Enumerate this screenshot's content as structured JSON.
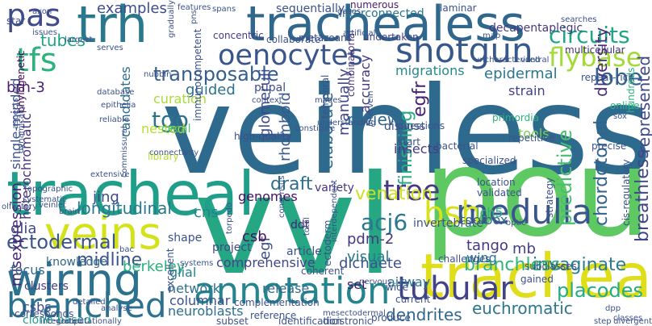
{
  "words": [
    {
      "text": "veinless",
      "color": "#2e6a8e",
      "vertical": false
    },
    {
      "text": "pou",
      "color": "#5ec962",
      "vertical": false
    },
    {
      "text": "vvl",
      "color": "#26a784",
      "vertical": false
    },
    {
      "text": "tracheal",
      "color": "#1f9e89",
      "vertical": false
    },
    {
      "text": "trachealess",
      "color": "#30678d",
      "vertical": false
    },
    {
      "text": "trachea",
      "color": "#e0dd19",
      "vertical": false
    },
    {
      "text": "trh",
      "color": "#2a788e",
      "vertical": false
    },
    {
      "text": "wiring",
      "color": "#2c718e",
      "vertical": false
    },
    {
      "text": "veins",
      "color": "#d3e21b",
      "vertical": false
    },
    {
      "text": "annotation",
      "color": "#25848e",
      "vertical": false
    },
    {
      "text": "branched",
      "color": "#2c728e",
      "vertical": false
    },
    {
      "text": "medulla",
      "color": "#39568c",
      "vertical": false
    },
    {
      "text": "shotgun",
      "color": "#38588c",
      "vertical": false
    },
    {
      "text": "oenocytes",
      "color": "#3a548c",
      "vertical": false
    },
    {
      "text": "tfs",
      "color": "#2db27d",
      "vertical": false
    },
    {
      "text": "pas",
      "color": "#3e4a89",
      "vertical": false
    },
    {
      "text": "flybase",
      "color": "#a2da37",
      "vertical": false
    },
    {
      "text": "bsh",
      "color": "#d8e219",
      "vertical": false
    },
    {
      "text": "tubular",
      "color": "#414287",
      "vertical": false
    },
    {
      "text": "tree",
      "color": "#443a83",
      "vertical": false
    },
    {
      "text": "circuits",
      "color": "#21a685",
      "vertical": false
    },
    {
      "text": "lobe",
      "color": "#33638d",
      "vertical": false
    },
    {
      "text": "transposable",
      "color": "#365d8d",
      "vertical": false
    },
    {
      "text": "tubes",
      "color": "#1fa287",
      "vertical": false
    },
    {
      "text": "examples",
      "color": "#3d4d8a",
      "vertical": false
    },
    {
      "text": "ectodermal",
      "color": "#3a548c",
      "vertical": false
    },
    {
      "text": "breathless",
      "color": "#404588",
      "vertical": true
    },
    {
      "text": "represented",
      "color": "#3f4889",
      "vertical": true
    },
    {
      "text": "chordotonal",
      "color": "#33628d",
      "vertical": true
    },
    {
      "text": "diversity",
      "color": "#472d7b",
      "vertical": true
    },
    {
      "text": "dendrites",
      "color": "#31668e",
      "vertical": false
    },
    {
      "text": "euchromatic",
      "color": "#2b758e",
      "vertical": false
    },
    {
      "text": "placodes",
      "color": "#25ac82",
      "vertical": false
    },
    {
      "text": "invaginate",
      "color": "#287c8e",
      "vertical": false
    },
    {
      "text": "branchless",
      "color": "#2fb47c",
      "vertical": false
    },
    {
      "text": "midline",
      "color": "#39558c",
      "vertical": false
    },
    {
      "text": "venation",
      "color": "#cde11d",
      "vertical": false
    },
    {
      "text": "egfr",
      "color": "#482173",
      "vertical": true
    },
    {
      "text": "finishing",
      "color": "#27ad81",
      "vertical": true
    },
    {
      "text": "acj6",
      "color": "#2a788e",
      "vertical": false
    },
    {
      "text": "egf",
      "color": "#3c4f8a",
      "vertical": true
    },
    {
      "text": "manually",
      "color": "#3f4788",
      "vertical": true
    },
    {
      "text": "accuracy",
      "color": "#453781",
      "vertical": true
    },
    {
      "text": "rhomboid",
      "color": "#38588c",
      "vertical": true
    },
    {
      "text": "elaborate",
      "color": "#306a8e",
      "vertical": true
    },
    {
      "text": "glomeruli",
      "color": "#3e4a89",
      "vertical": true
    },
    {
      "text": "tgo",
      "color": "#2c728e",
      "vertical": false
    },
    {
      "text": "nested",
      "color": "#b8de29",
      "vertical": false
    },
    {
      "text": "jing",
      "color": "#3e4989",
      "vertical": false
    },
    {
      "text": "longitudinal",
      "color": "#297a8e",
      "vertical": false
    },
    {
      "text": "draft",
      "color": "#2e6f8e",
      "vertical": false
    },
    {
      "text": "candidates",
      "color": "#2e6d8e",
      "vertical": true
    },
    {
      "text": "heterochromatic",
      "color": "#46327e",
      "vertical": true
    },
    {
      "text": "single-minded",
      "color": "#3b528b",
      "vertical": true
    },
    {
      "text": "misexpression",
      "color": "#482576",
      "vertical": true
    },
    {
      "text": "berkeley",
      "color": "#2ab07f",
      "vertical": false
    },
    {
      "text": "comprehensive",
      "color": "#404588",
      "vertical": false
    },
    {
      "text": "dichaete",
      "color": "#3b528b",
      "vertical": false
    },
    {
      "text": "tango",
      "color": "#453882",
      "vertical": false
    },
    {
      "text": "wing",
      "color": "#2a788e",
      "vertical": false
    },
    {
      "text": "mb",
      "color": "#424086",
      "vertical": false
    },
    {
      "text": "predictive",
      "color": "#46c06f",
      "vertical": true
    },
    {
      "text": "review",
      "color": "#31688e",
      "vertical": false
    },
    {
      "text": "cns",
      "color": "#26828e",
      "vertical": false
    },
    {
      "text": "csb",
      "color": "#471164",
      "vertical": false
    },
    {
      "text": "pdm-2",
      "color": "#453882",
      "vertical": false
    },
    {
      "text": "glial",
      "color": "#27808e",
      "vertical": false
    },
    {
      "text": "visual",
      "color": "#2a788e",
      "vertical": false
    },
    {
      "text": "network",
      "color": "#2d708e",
      "vertical": false
    },
    {
      "text": "release",
      "color": "#31688e",
      "vertical": false
    },
    {
      "text": "columnar",
      "color": "#3b518b",
      "vertical": false
    },
    {
      "text": "neuroblasts",
      "color": "#2e6e8e",
      "vertical": false
    },
    {
      "text": "set",
      "color": "#481668",
      "vertical": false
    },
    {
      "text": "airway",
      "color": "#2a768e",
      "vertical": false
    },
    {
      "text": "guided",
      "color": "#2d718e",
      "vertical": false
    },
    {
      "text": "pupal",
      "color": "#3d4d8a",
      "vertical": false
    },
    {
      "text": "curation",
      "color": "#a8db34",
      "vertical": false
    },
    {
      "text": "migrations",
      "color": "#23898e",
      "vertical": false
    },
    {
      "text": "epidermal",
      "color": "#2a768e",
      "vertical": false
    },
    {
      "text": "glia",
      "color": "#3f4788",
      "vertical": false
    },
    {
      "text": "brn-3",
      "color": "#482374",
      "vertical": false
    },
    {
      "text": "genomes",
      "color": "#471164",
      "vertical": false
    },
    {
      "text": "variety",
      "color": "#46327e",
      "vertical": false
    },
    {
      "text": "focus",
      "color": "#306a8e",
      "vertical": false
    },
    {
      "text": "csbs",
      "color": "#3e4c8a",
      "vertical": false
    },
    {
      "text": "clone-based",
      "color": "#1fa088",
      "vertical": false
    },
    {
      "text": "clusters",
      "color": "#433e85",
      "vertical": false
    },
    {
      "text": "knowledge",
      "color": "#30678d",
      "vertical": false
    },
    {
      "text": "shape",
      "color": "#3b528b",
      "vertical": false
    },
    {
      "text": "ddt",
      "color": "#482374",
      "vertical": false
    },
    {
      "text": "lch5",
      "color": "#2db27d",
      "vertical": false
    },
    {
      "text": "toolbox",
      "color": "#30678d",
      "vertical": false
    },
    {
      "text": "tools",
      "color": "#7ad151",
      "vertical": false
    },
    {
      "text": "insects",
      "color": "#433d84",
      "vertical": false
    },
    {
      "text": "strain",
      "color": "#414287",
      "vertical": false
    },
    {
      "text": "discuss",
      "color": "#3b528b",
      "vertical": false
    },
    {
      "text": "project",
      "color": "#3f4889",
      "vertical": false
    },
    {
      "text": "article",
      "color": "#3b518b",
      "vertical": false
    },
    {
      "text": "invertebrate",
      "color": "#3a548c",
      "vertical": false
    },
    {
      "text": "high-quality",
      "color": "#3c4f8a",
      "vertical": false
    },
    {
      "text": "library",
      "color": "#b5de2b",
      "vertical": false
    },
    {
      "text": "cecal",
      "color": "#4ac16d",
      "vertical": false
    },
    {
      "text": "collaborate",
      "color": "#3b528b",
      "vertical": false
    },
    {
      "text": "metazoans",
      "color": "#3d4e8a",
      "vertical": false
    },
    {
      "text": "undertaken",
      "color": "#424086",
      "vertical": false
    },
    {
      "text": "multicellular",
      "color": "#472f7d",
      "vertical": false
    },
    {
      "text": "decapentaplegic",
      "color": "#443983",
      "vertical": false
    },
    {
      "text": "interconnected",
      "color": "#2a768e",
      "vertical": false
    },
    {
      "text": "sequentially",
      "color": "#3b528b",
      "vertical": false
    },
    {
      "text": "laminar",
      "color": "#3b528b",
      "vertical": false
    },
    {
      "text": "numerous",
      "color": "#481a6c",
      "vertical": false
    },
    {
      "text": "concentric",
      "color": "#443983",
      "vertical": false
    },
    {
      "text": "phylogenetic",
      "color": "#440154",
      "vertical": true
    },
    {
      "text": "temporal",
      "color": "#3b528b",
      "vertical": true
    },
    {
      "text": "combinatorial",
      "color": "#46337f",
      "vertical": true
    },
    {
      "text": "immunocompetent",
      "color": "#3b528b",
      "vertical": true
    },
    {
      "text": "repeat-rich",
      "color": "#3b528b",
      "vertical": false
    },
    {
      "text": "primordia",
      "color": "#2db27d",
      "vertical": false
    },
    {
      "text": "online",
      "color": "#2db27d",
      "vertical": false
    },
    {
      "text": "hundreds",
      "color": "#2db27d",
      "vertical": true
    },
    {
      "text": "repetitive",
      "color": "#3b528b",
      "vertical": false
    },
    {
      "text": "specialized",
      "color": "#3b528b",
      "vertical": false
    },
    {
      "text": "bacterial",
      "color": "#3b528b",
      "vertical": false
    },
    {
      "text": "questions",
      "color": "#3b528b",
      "vertical": false
    },
    {
      "text": "start",
      "color": "#3b528b",
      "vertical": false
    },
    {
      "text": "precise",
      "color": "#3b528b",
      "vertical": false
    },
    {
      "text": "location",
      "color": "#3b528b",
      "vertical": false
    },
    {
      "text": "validated",
      "color": "#3b528b",
      "vertical": false
    },
    {
      "text": "cis-regulatory",
      "color": "#3b528b",
      "vertical": true
    },
    {
      "text": "strategy",
      "color": "#3b528b",
      "vertical": true
    },
    {
      "text": "challenges",
      "color": "#3b528b",
      "vertical": false
    },
    {
      "text": "subclasses",
      "color": "#3b528b",
      "vertical": false
    },
    {
      "text": "gained",
      "color": "#3b528b",
      "vertical": false
    },
    {
      "text": "coherent",
      "color": "#3b528b",
      "vertical": false
    },
    {
      "text": "wide",
      "color": "#3b528b",
      "vertical": false
    },
    {
      "text": "current",
      "color": "#3b528b",
      "vertical": false
    },
    {
      "text": "complementation",
      "color": "#3b528b",
      "vertical": false
    },
    {
      "text": "reference",
      "color": "#3b528b",
      "vertical": false
    },
    {
      "text": "produce",
      "color": "#3b528b",
      "vertical": false
    },
    {
      "text": "dicistronic",
      "color": "#3b528b",
      "vertical": false
    },
    {
      "text": "identification",
      "color": "#3b528b",
      "vertical": false
    },
    {
      "text": "subset",
      "color": "#3b528b",
      "vertical": false
    },
    {
      "text": "integrated",
      "color": "#3b528b",
      "vertical": false
    },
    {
      "text": "computationally",
      "color": "#3b528b",
      "vertical": false
    },
    {
      "text": "detailed",
      "color": "#3b528b",
      "vertical": false
    },
    {
      "text": "analyse",
      "color": "#3b528b",
      "vertical": false
    },
    {
      "text": "corresponds",
      "color": "#3b528b",
      "vertical": false
    },
    {
      "text": "systems",
      "color": "#3b528b",
      "vertical": false
    },
    {
      "text": "excellent",
      "color": "#3b528b",
      "vertical": true
    },
    {
      "text": "bac",
      "color": "#3b528b",
      "vertical": false
    },
    {
      "text": "topographic",
      "color": "#3b528b",
      "vertical": false
    },
    {
      "text": "systematic",
      "color": "#3b528b",
      "vertical": false
    },
    {
      "text": "olfactory",
      "color": "#3b528b",
      "vertical": false
    },
    {
      "text": "veinlet",
      "color": "#3b528b",
      "vertical": false
    },
    {
      "text": "brain",
      "color": "#3b528b",
      "vertical": false
    },
    {
      "text": "dynamically",
      "color": "#3b528b",
      "vertical": true
    },
    {
      "text": "aspects",
      "color": "#3b528b",
      "vertical": true
    },
    {
      "text": "connectivity",
      "color": "#3b528b",
      "vertical": false
    },
    {
      "text": "commissural",
      "color": "#3b528b",
      "vertical": true
    },
    {
      "text": "extensive",
      "color": "#3b528b",
      "vertical": false
    },
    {
      "text": "epithelia",
      "color": "#3b528b",
      "vertical": false
    },
    {
      "text": "reliable",
      "color": "#3b528b",
      "vertical": false
    },
    {
      "text": "database",
      "color": "#3b528b",
      "vertical": false
    },
    {
      "text": "nubbin",
      "color": "#3b528b",
      "vertical": false
    },
    {
      "text": "serves",
      "color": "#3b528b",
      "vertical": false
    },
    {
      "text": "largest",
      "color": "#3b528b",
      "vertical": false
    },
    {
      "text": "issues",
      "color": "#3b528b",
      "vertical": false
    },
    {
      "text": "features",
      "color": "#3b528b",
      "vertical": false
    },
    {
      "text": "spans",
      "color": "#3b528b",
      "vertical": false
    },
    {
      "text": "gases",
      "color": "#3b528b",
      "vertical": false
    },
    {
      "text": "uncharacterized",
      "color": "#3b528b",
      "vertical": false
    },
    {
      "text": "map",
      "color": "#3b528b",
      "vertical": false
    },
    {
      "text": "ventral",
      "color": "#3b528b",
      "vertical": false
    },
    {
      "text": "searches",
      "color": "#3b528b",
      "vertical": false
    },
    {
      "text": "artificial",
      "color": "#3b528b",
      "vertical": false
    },
    {
      "text": "modes",
      "color": "#3b528b",
      "vertical": false
    },
    {
      "text": "context",
      "color": "#3b528b",
      "vertical": false
    },
    {
      "text": "understanding",
      "color": "#3b528b",
      "vertical": false
    },
    {
      "text": "constitute",
      "color": "#3b528b",
      "vertical": false
    },
    {
      "text": "intervein",
      "color": "#3b528b",
      "vertical": true
    },
    {
      "text": "optic",
      "color": "#3b528b",
      "vertical": false
    },
    {
      "text": "dpp",
      "color": "#3b528b",
      "vertical": false
    },
    {
      "text": "classes",
      "color": "#3b528b",
      "vertical": false
    },
    {
      "text": "divergent",
      "color": "#3b528b",
      "vertical": false
    },
    {
      "text": "step",
      "color": "#3b528b",
      "vertical": false
    },
    {
      "text": "sox",
      "color": "#3b528b",
      "vertical": false
    },
    {
      "text": "pns",
      "color": "#3b528b",
      "vertical": true
    },
    {
      "text": "gradually",
      "color": "#3b528b",
      "vertical": true
    },
    {
      "text": "axon",
      "color": "#3b528b",
      "vertical": false
    },
    {
      "text": "star",
      "color": "#3b528b",
      "vertical": false
    },
    {
      "text": "torpedo",
      "color": "#3b528b",
      "vertical": true
    },
    {
      "text": "consensus",
      "color": "#3b528b",
      "vertical": true
    },
    {
      "text": "total",
      "color": "#3b528b",
      "vertical": true
    },
    {
      "text": "ectoderm",
      "color": "#3b528b",
      "vertical": true
    },
    {
      "text": "nervous",
      "color": "#3b528b",
      "vertical": false
    },
    {
      "text": "interdependent",
      "color": "#3b528b",
      "vertical": true
    },
    {
      "text": "mesectodermal",
      "color": "#3b528b",
      "vertical": false
    }
  ]
}
